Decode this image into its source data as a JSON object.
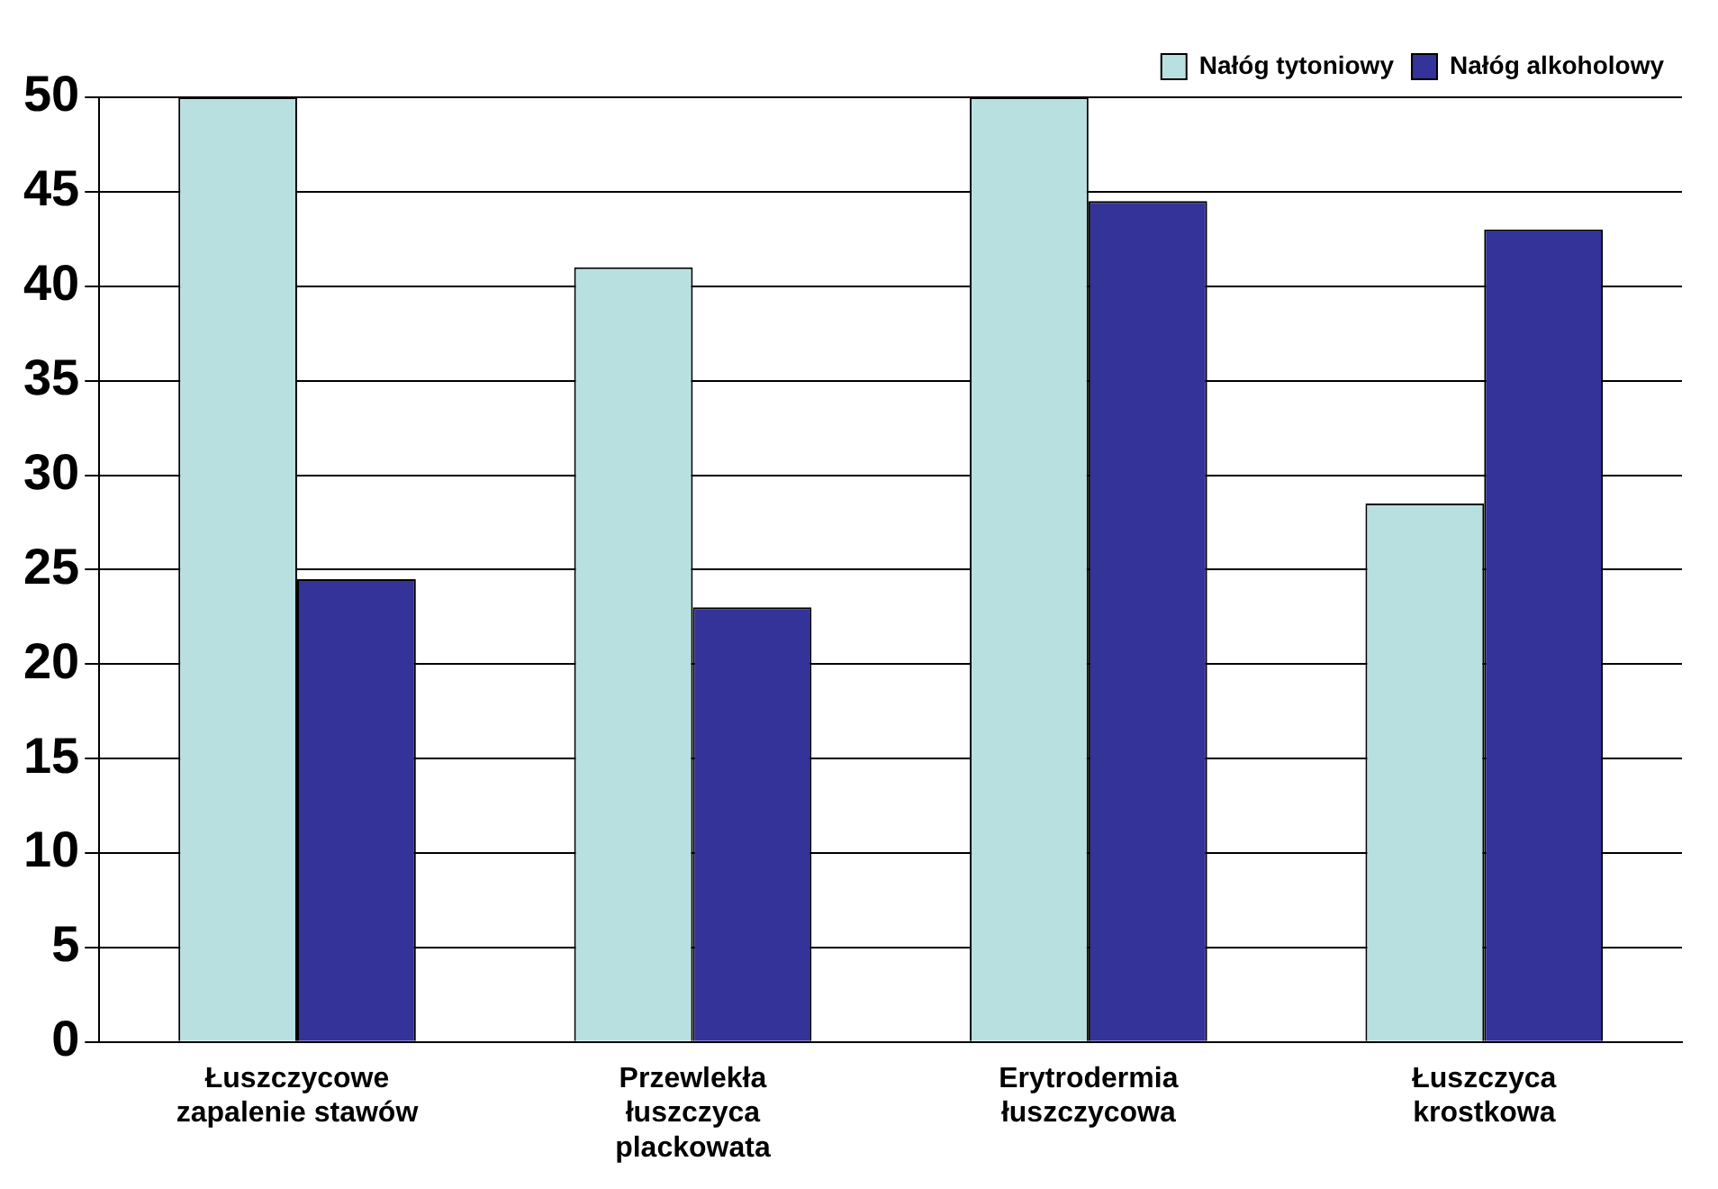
{
  "chart_data": {
    "type": "bar",
    "categories": [
      "Łuszczycowe zapalenie stawów",
      "Przewlekła łuszczyca plackowata",
      "Erytrodermia łuszczycowa",
      "Łuszczyca krostkowa"
    ],
    "series": [
      {
        "name": "Nałóg tytoniowy",
        "color": "#b9e0e0",
        "values": [
          50,
          41,
          50,
          28.5
        ]
      },
      {
        "name": "Nałóg alkoholowy",
        "color": "#333399",
        "values": [
          24.5,
          23,
          44.5,
          43
        ]
      }
    ],
    "ylim": [
      0,
      50
    ],
    "yticks": [
      0,
      5,
      10,
      15,
      20,
      25,
      30,
      35,
      40,
      45,
      50
    ],
    "grid": "y",
    "legend": "top right"
  }
}
